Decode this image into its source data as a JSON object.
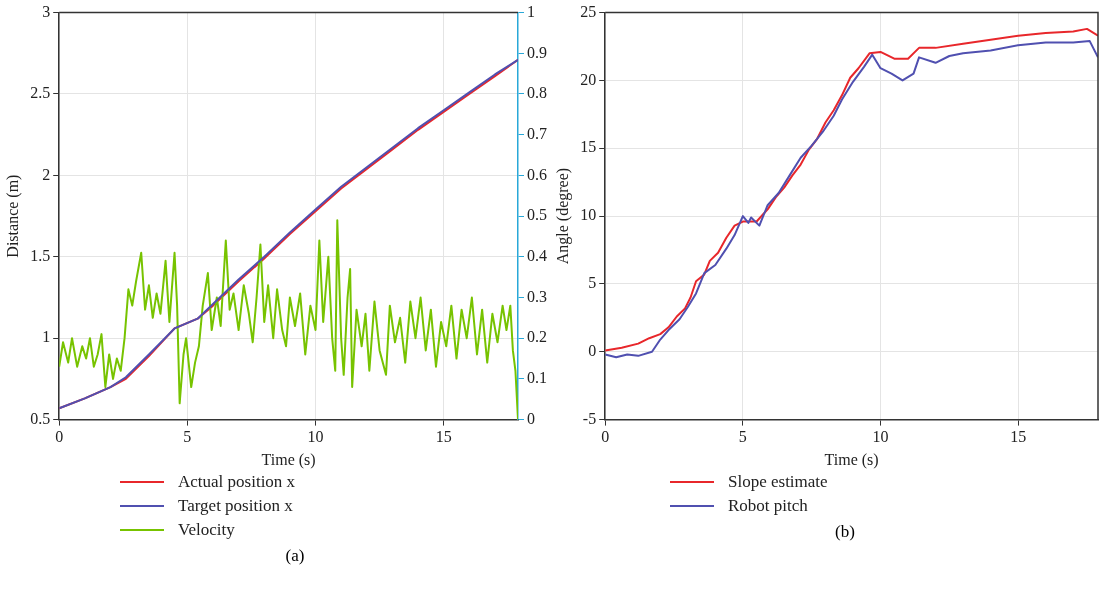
{
  "chart_data": [
    {
      "type": "line",
      "xlabel": "Time (s)",
      "ylabel": "Distance (m)",
      "xlim": [
        0,
        17.9
      ],
      "xticks": [
        0,
        5,
        10,
        15
      ],
      "ylim": [
        0.5,
        3
      ],
      "yticks": [
        0.5,
        1,
        1.5,
        2,
        2.5,
        3
      ],
      "y2lim": [
        0,
        1
      ],
      "y2ticks": [
        0,
        0.1,
        0.2,
        0.3,
        0.4,
        0.5,
        0.6,
        0.7,
        0.8,
        0.9,
        1
      ],
      "grid": true,
      "legend": "bottom",
      "marker": "none",
      "line_style": "solid",
      "annotations": [
        "(a)"
      ],
      "series": [
        {
          "name": "Actual position x",
          "color": "#e8272b",
          "x": [
            0,
            1,
            2,
            2.6,
            3.5,
            4.5,
            5.4,
            6,
            7,
            8,
            9,
            10,
            11,
            12,
            13,
            14,
            15,
            16,
            17,
            17.9
          ],
          "values": [
            0.57,
            0.63,
            0.7,
            0.75,
            0.89,
            1.06,
            1.12,
            1.2,
            1.35,
            1.49,
            1.64,
            1.78,
            1.92,
            2.04,
            2.16,
            2.28,
            2.39,
            2.5,
            2.61,
            2.71
          ]
        },
        {
          "name": "Target position x",
          "color": "#5050b0",
          "x": [
            0,
            1,
            2,
            2.6,
            3.5,
            4.5,
            5.4,
            6,
            7,
            8,
            9,
            10,
            11,
            12,
            13,
            14,
            15,
            16,
            17,
            17.9
          ],
          "values": [
            0.57,
            0.63,
            0.7,
            0.76,
            0.9,
            1.06,
            1.12,
            1.21,
            1.36,
            1.5,
            1.65,
            1.79,
            1.93,
            2.05,
            2.17,
            2.29,
            2.4,
            2.51,
            2.62,
            2.71
          ]
        },
        {
          "name": "Velocity",
          "color": "#77c300",
          "axis": "y2",
          "x": [
            0,
            0.15,
            0.35,
            0.5,
            0.7,
            0.9,
            1.05,
            1.2,
            1.35,
            1.5,
            1.65,
            1.8,
            1.95,
            2.1,
            2.25,
            2.4,
            2.55,
            2.7,
            2.85,
            3.0,
            3.2,
            3.35,
            3.5,
            3.65,
            3.8,
            3.95,
            4.15,
            4.3,
            4.5,
            4.6,
            4.7,
            4.85,
            4.95,
            5.15,
            5.3,
            5.45,
            5.6,
            5.8,
            5.95,
            6.15,
            6.3,
            6.5,
            6.65,
            6.8,
            7.0,
            7.2,
            7.4,
            7.55,
            7.7,
            7.85,
            8.0,
            8.15,
            8.35,
            8.5,
            8.7,
            8.85,
            9.0,
            9.2,
            9.4,
            9.6,
            9.8,
            10.0,
            10.15,
            10.3,
            10.5,
            10.65,
            10.77,
            10.85,
            11.0,
            11.1,
            11.25,
            11.35,
            11.43,
            11.6,
            11.8,
            11.95,
            12.1,
            12.3,
            12.5,
            12.75,
            12.9,
            13.1,
            13.3,
            13.5,
            13.7,
            13.9,
            14.1,
            14.3,
            14.5,
            14.7,
            14.9,
            15.1,
            15.3,
            15.5,
            15.7,
            15.9,
            16.1,
            16.3,
            16.5,
            16.7,
            16.9,
            17.1,
            17.3,
            17.45,
            17.6,
            17.7,
            17.8,
            17.9
          ],
          "values": [
            0.13,
            0.19,
            0.14,
            0.2,
            0.13,
            0.18,
            0.15,
            0.2,
            0.13,
            0.16,
            0.21,
            0.08,
            0.16,
            0.1,
            0.15,
            0.12,
            0.2,
            0.32,
            0.28,
            0.34,
            0.41,
            0.27,
            0.33,
            0.25,
            0.31,
            0.26,
            0.39,
            0.24,
            0.41,
            0.28,
            0.04,
            0.16,
            0.2,
            0.08,
            0.14,
            0.18,
            0.28,
            0.36,
            0.22,
            0.3,
            0.23,
            0.44,
            0.27,
            0.31,
            0.22,
            0.33,
            0.26,
            0.19,
            0.3,
            0.43,
            0.24,
            0.33,
            0.2,
            0.32,
            0.22,
            0.18,
            0.3,
            0.23,
            0.31,
            0.16,
            0.28,
            0.22,
            0.44,
            0.24,
            0.4,
            0.2,
            0.12,
            0.49,
            0.2,
            0.11,
            0.3,
            0.37,
            0.08,
            0.27,
            0.18,
            0.26,
            0.12,
            0.29,
            0.17,
            0.11,
            0.28,
            0.19,
            0.25,
            0.14,
            0.29,
            0.2,
            0.3,
            0.17,
            0.27,
            0.13,
            0.24,
            0.18,
            0.28,
            0.15,
            0.27,
            0.2,
            0.3,
            0.16,
            0.27,
            0.14,
            0.26,
            0.19,
            0.28,
            0.22,
            0.28,
            0.17,
            0.12,
            0.0
          ]
        }
      ]
    },
    {
      "type": "line",
      "xlabel": "Time (s)",
      "ylabel": "Angle (degree)",
      "xlim": [
        0,
        17.9
      ],
      "xticks": [
        0,
        5,
        10,
        15
      ],
      "ylim": [
        -5,
        25
      ],
      "yticks": [
        -5,
        0,
        5,
        10,
        15,
        20,
        25
      ],
      "grid": true,
      "legend": "bottom",
      "marker": "none",
      "line_style": "solid",
      "annotations": [
        "(b)"
      ],
      "series": [
        {
          "name": "Slope estimate",
          "color": "#e8272b",
          "x": [
            0,
            0.6,
            1.2,
            1.6,
            2.0,
            2.3,
            2.6,
            2.9,
            3.1,
            3.3,
            3.6,
            3.8,
            4.1,
            4.4,
            4.7,
            5.0,
            5.5,
            5.9,
            6.2,
            6.5,
            6.8,
            7.1,
            7.4,
            7.7,
            8.0,
            8.3,
            8.6,
            8.9,
            9.2,
            9.6,
            10.0,
            10.5,
            11.0,
            11.4,
            12,
            13,
            14,
            15,
            16,
            17,
            17.5,
            17.9
          ],
          "values": [
            0.1,
            0.3,
            0.6,
            1.0,
            1.3,
            1.8,
            2.6,
            3.2,
            4.0,
            5.2,
            5.7,
            6.7,
            7.3,
            8.4,
            9.3,
            9.6,
            9.6,
            10.5,
            11.4,
            12.1,
            13.0,
            13.8,
            14.9,
            15.7,
            16.9,
            17.8,
            18.9,
            20.2,
            20.9,
            22.0,
            22.1,
            21.6,
            21.6,
            22.4,
            22.4,
            22.7,
            23.0,
            23.3,
            23.5,
            23.6,
            23.8,
            23.3
          ]
        },
        {
          "name": "Robot pitch",
          "color": "#5050b0",
          "x": [
            0,
            0.4,
            0.8,
            1.2,
            1.7,
            2.0,
            2.3,
            2.7,
            3.0,
            3.3,
            3.6,
            4.0,
            4.4,
            4.7,
            5.0,
            5.2,
            5.3,
            5.6,
            5.9,
            6.3,
            6.7,
            7.1,
            7.5,
            7.9,
            8.3,
            8.6,
            9.0,
            9.4,
            9.7,
            10.0,
            10.4,
            10.8,
            11.2,
            11.4,
            12,
            12.5,
            13,
            14,
            15,
            16,
            17,
            17.6,
            17.9
          ],
          "values": [
            -0.2,
            -0.4,
            -0.2,
            -0.3,
            0,
            0.9,
            1.6,
            2.4,
            3.3,
            4.3,
            5.8,
            6.4,
            7.6,
            8.6,
            10.0,
            9.5,
            9.9,
            9.3,
            10.8,
            11.7,
            13.0,
            14.3,
            15.2,
            16.2,
            17.4,
            18.6,
            19.9,
            21.0,
            21.9,
            20.9,
            20.5,
            20.0,
            20.5,
            21.7,
            21.3,
            21.8,
            22.0,
            22.2,
            22.6,
            22.8,
            22.8,
            22.9,
            21.7
          ]
        }
      ]
    }
  ]
}
